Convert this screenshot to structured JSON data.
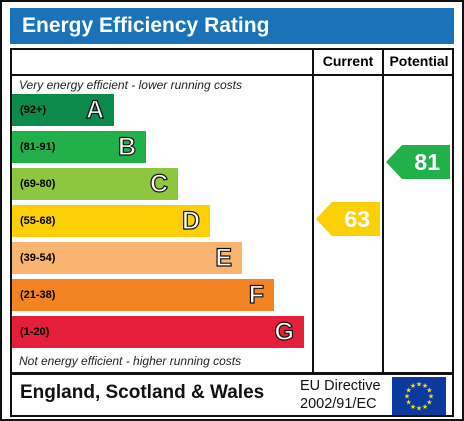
{
  "title": "Energy Efficiency Rating",
  "columns": {
    "current": "Current",
    "potential": "Potential"
  },
  "notes": {
    "top": "Very energy efficient - lower running costs",
    "bottom": "Not energy efficient - higher running costs"
  },
  "bands": [
    {
      "range": "(92+)",
      "letter": "A",
      "color": "#0b8a4a"
    },
    {
      "range": "(81-91)",
      "letter": "B",
      "color": "#22b04b"
    },
    {
      "range": "(69-80)",
      "letter": "C",
      "color": "#8dc63f"
    },
    {
      "range": "(55-68)",
      "letter": "D",
      "color": "#fdd005"
    },
    {
      "range": "(39-54)",
      "letter": "E",
      "color": "#f9b46f"
    },
    {
      "range": "(21-38)",
      "letter": "F",
      "color": "#f48321"
    },
    {
      "range": "(1-20)",
      "letter": "G",
      "color": "#e51f3a"
    }
  ],
  "current": {
    "value": "63",
    "color": "#fdd005"
  },
  "potential": {
    "value": "81",
    "color": "#22b04b"
  },
  "footer": {
    "region": "England, Scotland & Wales",
    "directive_line1": "EU Directive",
    "directive_line2": "2002/91/EC",
    "flag_color": "#0a3a9e",
    "star_color": "#ffdd00"
  }
}
